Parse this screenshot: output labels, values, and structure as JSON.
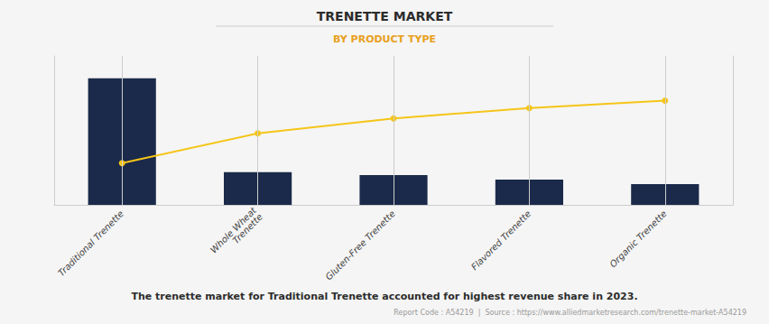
{
  "chart_data": {
    "type": "bar",
    "title": "TRENETTE MARKET",
    "subtitle": "BY PRODUCT TYPE",
    "categories": [
      "Traditional Trenette",
      "Whole Wheat\nTrenette",
      "Gluten-Free Trenette",
      "Flavored Trenette",
      "Organic Trenette"
    ],
    "series": [
      {
        "type": "bar",
        "color": "#1B2A4A",
        "values": [
          85,
          22,
          20,
          17,
          14
        ]
      },
      {
        "type": "line",
        "axis": "y2",
        "color": "#F5C518",
        "marker": "circle",
        "values": [
          28,
          48,
          58,
          65,
          70
        ]
      }
    ],
    "ylim": [
      0,
      100
    ],
    "y2lim": [
      0,
      100
    ],
    "tick_labels": "x",
    "grid": "x",
    "annotations": [
      "The trenette market for Traditional Trenette accounted for highest revenue share in 2023.",
      "Report Code : A54219  |  Source : https://www.alliedmarketresearch.com/trenette-market-A54219"
    ]
  }
}
